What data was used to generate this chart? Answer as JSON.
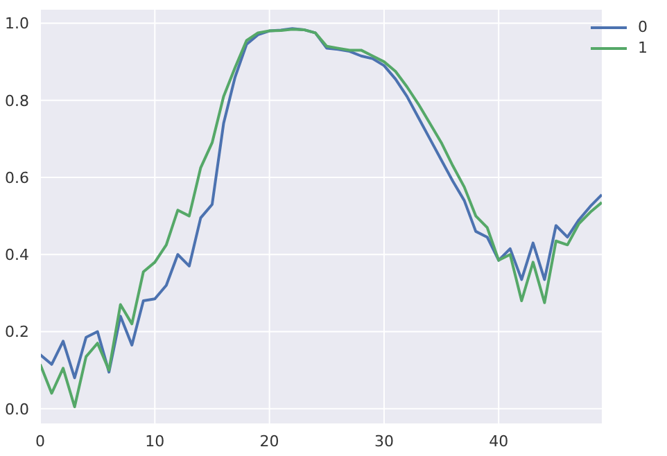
{
  "chart_data": {
    "type": "line",
    "x": [
      0,
      1,
      2,
      3,
      4,
      5,
      6,
      7,
      8,
      9,
      10,
      11,
      12,
      13,
      14,
      15,
      16,
      17,
      18,
      19,
      20,
      21,
      22,
      23,
      24,
      25,
      26,
      27,
      28,
      29,
      30,
      31,
      32,
      33,
      34,
      35,
      36,
      37,
      38,
      39,
      40,
      41,
      42,
      43,
      44,
      45,
      46,
      47,
      48,
      49
    ],
    "series": [
      {
        "name": "0",
        "color": "#4c72b0",
        "values": [
          0.14,
          0.115,
          0.175,
          0.08,
          0.185,
          0.2,
          0.095,
          0.24,
          0.165,
          0.28,
          0.285,
          0.32,
          0.4,
          0.37,
          0.495,
          0.53,
          0.74,
          0.86,
          0.945,
          0.97,
          0.98,
          0.982,
          0.986,
          0.983,
          0.975,
          0.935,
          0.932,
          0.927,
          0.915,
          0.908,
          0.89,
          0.855,
          0.81,
          0.755,
          0.7,
          0.645,
          0.59,
          0.54,
          0.46,
          0.445,
          0.385,
          0.415,
          0.335,
          0.43,
          0.335,
          0.475,
          0.445,
          0.49,
          0.525,
          0.555
        ]
      },
      {
        "name": "1",
        "color": "#55a868",
        "values": [
          0.115,
          0.04,
          0.105,
          0.005,
          0.135,
          0.17,
          0.1,
          0.27,
          0.22,
          0.355,
          0.38,
          0.425,
          0.515,
          0.5,
          0.625,
          0.69,
          0.81,
          0.885,
          0.955,
          0.975,
          0.98,
          0.981,
          0.984,
          0.983,
          0.975,
          0.94,
          0.935,
          0.93,
          0.93,
          0.915,
          0.9,
          0.875,
          0.835,
          0.79,
          0.74,
          0.69,
          0.63,
          0.575,
          0.5,
          0.47,
          0.385,
          0.4,
          0.28,
          0.38,
          0.275,
          0.435,
          0.425,
          0.48,
          0.51,
          0.535
        ]
      }
    ],
    "xlim": [
      0,
      49
    ],
    "xticks": [
      0,
      10,
      20,
      30,
      40
    ],
    "ylim": [
      -0.04,
      1.035
    ],
    "yticks": [
      {
        "value": 0,
        "label": "0.0"
      },
      {
        "value": 0.2,
        "label": "0.2"
      },
      {
        "value": 0.4,
        "label": "0.4"
      },
      {
        "value": 0.6,
        "label": "0.6"
      },
      {
        "value": 0.8,
        "label": "0.8"
      },
      {
        "value": 1,
        "label": "1.0"
      }
    ],
    "grid": true,
    "legend": "top right",
    "marker": "none",
    "line_style": "solid"
  }
}
